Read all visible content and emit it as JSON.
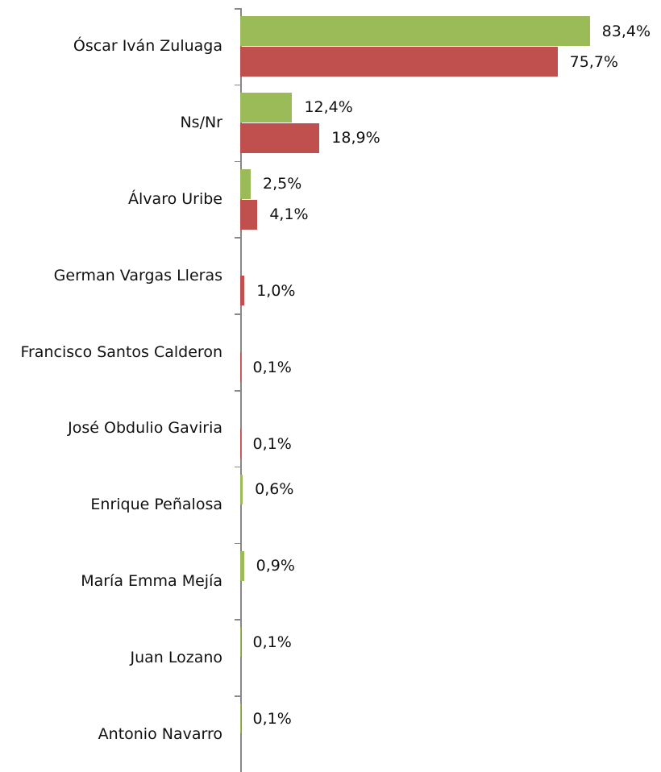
{
  "chart_data": {
    "type": "hbar",
    "categories": [
      "Óscar Iván Zuluaga",
      "Ns/Nr",
      "Álvaro Uribe",
      "German Vargas Lleras",
      "Francisco Santos Calderon",
      "José Obdulio Gaviria",
      "Enrique Peñalosa",
      "María Emma Mejía",
      "Juan Lozano",
      "Antonio Navarro"
    ],
    "series": [
      {
        "color": "#9bbb59",
        "values": [
          83.4,
          12.4,
          2.5,
          null,
          null,
          null,
          0.6,
          0.9,
          0.1,
          0.1
        ],
        "value_labels": [
          "83,4%",
          "12,4%",
          "2,5%",
          null,
          null,
          null,
          "0,6%",
          "0,9%",
          "0,1%",
          "0,1%"
        ]
      },
      {
        "color": "#c0504d",
        "values": [
          75.7,
          18.9,
          4.1,
          1.0,
          0.1,
          0.1,
          null,
          null,
          null,
          null
        ],
        "value_labels": [
          "75,7%",
          "18,9%",
          "4,1%",
          "1,0%",
          "0,1%",
          "0,1%",
          null,
          null,
          null,
          null
        ]
      }
    ],
    "xlim": [
      0,
      100
    ]
  }
}
